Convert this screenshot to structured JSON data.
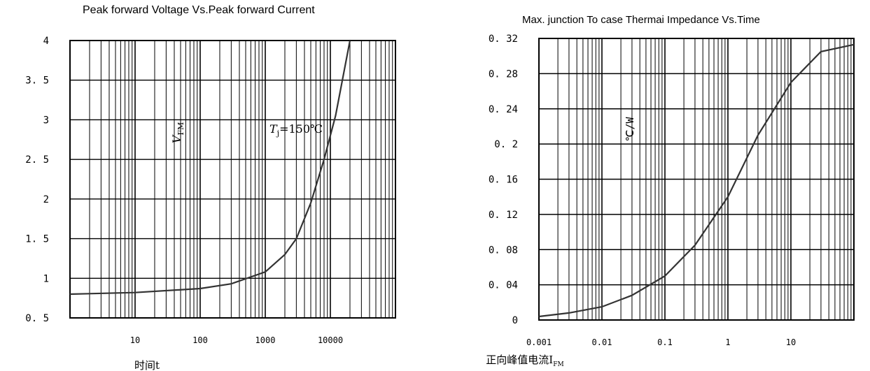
{
  "chart_data": [
    {
      "type": "line",
      "title": "Peak forward Voltage Vs.Peak forward Current",
      "ylabel": "V",
      "ylabel_sub": "FM",
      "xlabel": "正向峰值电流I",
      "xlabel_sub": "FM",
      "x_scale": "log",
      "xlim": [
        1,
        100000
      ],
      "ylim": [
        0.5,
        4
      ],
      "y_ticks": [
        "0.5",
        "1",
        "1.5",
        "2",
        "2.5",
        "3",
        "3.5",
        "4"
      ],
      "x_ticks": [
        "10",
        "100",
        "1000",
        "10000"
      ],
      "annotation": "T",
      "annotation_sub": "j",
      "annotation_value": "=150℃",
      "series": [
        {
          "x": [
            1,
            10,
            100,
            300,
            1000,
            2000,
            3000,
            5000,
            8000,
            12000,
            20000
          ],
          "y": [
            0.8,
            0.82,
            0.87,
            0.93,
            1.08,
            1.3,
            1.5,
            1.95,
            2.5,
            3.05,
            4.0
          ]
        }
      ]
    },
    {
      "type": "line",
      "title": "Max. junction To case Thermai Impedance Vs.Time",
      "ylabel": "℃/W",
      "xlabel": "时间t",
      "x_scale": "log",
      "xlim": [
        0.001,
        100
      ],
      "ylim": [
        0,
        0.32
      ],
      "y_ticks": [
        "0",
        "0.04",
        "0.08",
        "0.12",
        "0.16",
        "0.2",
        "0.24",
        "0.28",
        "0.32"
      ],
      "x_ticks": [
        "0.001",
        "0.01",
        "0.1",
        "1",
        "10"
      ],
      "series": [
        {
          "x": [
            0.001,
            0.003,
            0.01,
            0.03,
            0.1,
            0.3,
            1,
            3,
            10,
            30,
            100
          ],
          "y": [
            0.004,
            0.008,
            0.015,
            0.028,
            0.05,
            0.085,
            0.14,
            0.21,
            0.27,
            0.305,
            0.313
          ]
        }
      ]
    }
  ]
}
